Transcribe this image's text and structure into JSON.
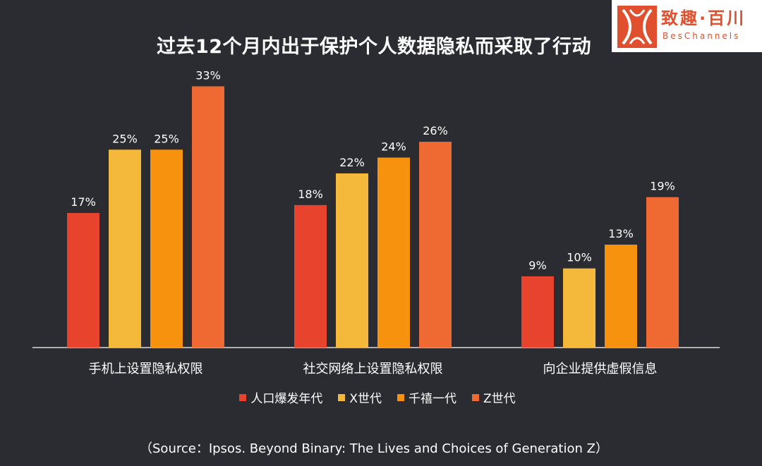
{
  "chart_data": {
    "type": "bar",
    "title": "过去12个月内出于保护个人数据隐私而采取了行动",
    "categories": [
      "手机上设置隐私权限",
      "社交网络上设置隐私权限",
      "向企业提供虚假信息"
    ],
    "series": [
      {
        "name": "人口爆发年代",
        "color": "#e8442d",
        "values": [
          17,
          18,
          9
        ]
      },
      {
        "name": "X世代",
        "color": "#f4b93a",
        "values": [
          25,
          22,
          10
        ]
      },
      {
        "name": "千禧一代",
        "color": "#f7920f",
        "values": [
          25,
          24,
          13
        ]
      },
      {
        "name": "Z世代",
        "color": "#ee6a32",
        "values": [
          33,
          26,
          19
        ]
      }
    ],
    "value_suffix": "%",
    "ylim": [
      0,
      35
    ],
    "xlabel": "",
    "ylabel": ""
  },
  "logo": {
    "name": "致趣·百川",
    "sub": "BesChannels"
  },
  "source": "（Source：Ipsos. Beyond Binary: The Lives and Choices of Generation Z）"
}
